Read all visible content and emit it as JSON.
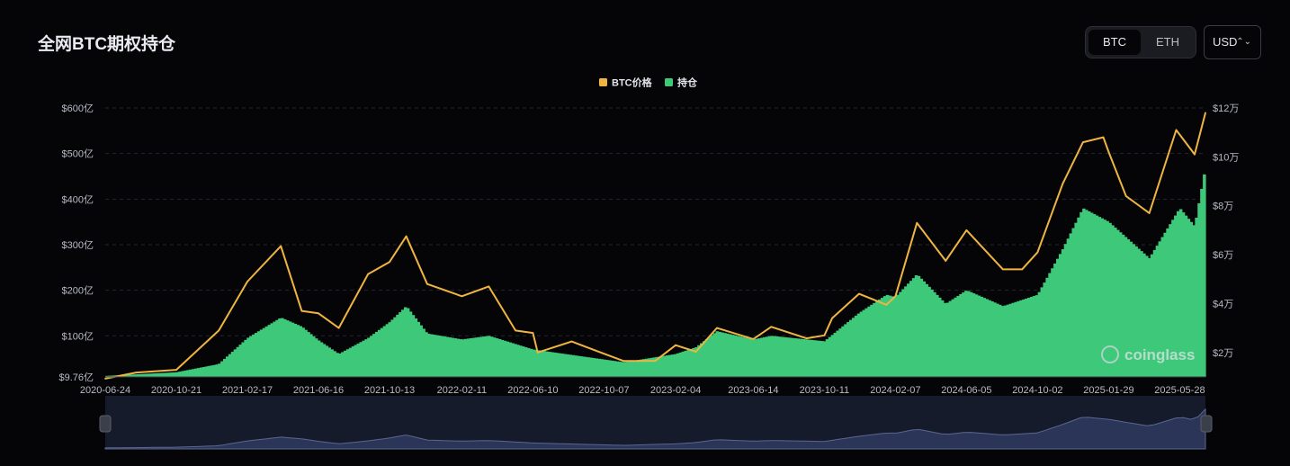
{
  "header": {
    "title": "全网BTC期权持仓",
    "asset_tabs": [
      "BTC",
      "ETH"
    ],
    "active_tab": "BTC",
    "currency": "USD"
  },
  "watermark": "coinglass",
  "colors": {
    "price_line": "#f0b541",
    "open_interest": "#3ec97a",
    "background": "#050508",
    "grid": "#23262e",
    "navigator": "#2b3558"
  },
  "chart_data": {
    "type": "area",
    "legend": [
      "BTC价格",
      "持仓"
    ],
    "legend_position": "top-center",
    "x": [
      "2020-06-24",
      "2020-10-21",
      "2021-02-17",
      "2021-06-16",
      "2021-10-13",
      "2022-02-11",
      "2022-06-10",
      "2022-10-07",
      "2023-02-04",
      "2023-06-14",
      "2023-10-11",
      "2024-02-07",
      "2024-06-05",
      "2024-10-02",
      "2025-01-29",
      "2025-05-28"
    ],
    "y_left_ticks": [
      "$9.76亿",
      "$100亿",
      "$200亿",
      "$300亿",
      "$400亿",
      "$500亿",
      "$600亿"
    ],
    "y_right_ticks": [
      "$2万",
      "$4万",
      "$6万",
      "$8万",
      "$10万",
      "$12万"
    ],
    "y_left_range": [
      9.76,
      600
    ],
    "y_right_range": [
      10000,
      120000
    ],
    "grid": true,
    "series": [
      {
        "name": "BTC价格",
        "axis": "right",
        "x": [
          "2020-06-24",
          "2020-08-15",
          "2020-10-21",
          "2020-12-31",
          "2021-02-17",
          "2021-04-14",
          "2021-05-19",
          "2021-06-16",
          "2021-07-20",
          "2021-09-07",
          "2021-10-13",
          "2021-11-10",
          "2021-12-15",
          "2022-02-11",
          "2022-03-28",
          "2022-05-12",
          "2022-06-10",
          "2022-06-18",
          "2022-08-14",
          "2022-10-07",
          "2022-11-09",
          "2023-01-01",
          "2023-02-04",
          "2023-03-10",
          "2023-04-14",
          "2023-06-14",
          "2023-07-14",
          "2023-09-11",
          "2023-10-11",
          "2023-10-24",
          "2023-12-08",
          "2024-01-23",
          "2024-02-07",
          "2024-03-14",
          "2024-05-01",
          "2024-06-05",
          "2024-08-05",
          "2024-09-06",
          "2024-10-02",
          "2024-11-13",
          "2024-12-17",
          "2025-01-20",
          "2025-01-29",
          "2025-02-27",
          "2025-04-07",
          "2025-05-22",
          "2025-06-22",
          "2025-07-10"
        ],
        "values": [
          9300,
          11800,
          12900,
          29000,
          49000,
          63500,
          37000,
          36000,
          30000,
          52000,
          57000,
          67500,
          48000,
          43000,
          47000,
          29000,
          28000,
          20000,
          24500,
          19500,
          16500,
          16600,
          23000,
          20300,
          30000,
          25500,
          30500,
          25800,
          27000,
          34000,
          44000,
          39500,
          43000,
          73000,
          57500,
          70000,
          54000,
          54000,
          61000,
          89000,
          106000,
          108000,
          102000,
          84000,
          77000,
          111000,
          101000,
          118000
        ]
      },
      {
        "name": "持仓",
        "axis": "left",
        "x": [
          "2020-06-24",
          "2020-10-21",
          "2020-12-31",
          "2021-02-17",
          "2021-04-14",
          "2021-05-19",
          "2021-06-16",
          "2021-07-20",
          "2021-09-07",
          "2021-10-13",
          "2021-11-10",
          "2021-12-15",
          "2022-02-11",
          "2022-03-28",
          "2022-06-10",
          "2022-10-07",
          "2022-11-09",
          "2023-02-04",
          "2023-03-10",
          "2023-04-14",
          "2023-06-14",
          "2023-07-14",
          "2023-10-11",
          "2023-12-08",
          "2024-01-23",
          "2024-02-07",
          "2024-03-14",
          "2024-05-01",
          "2024-06-05",
          "2024-08-05",
          "2024-10-02",
          "2024-11-13",
          "2024-12-17",
          "2025-01-29",
          "2025-04-07",
          "2025-05-28",
          "2025-06-22",
          "2025-07-10"
        ],
        "values": [
          12,
          20,
          38,
          95,
          140,
          120,
          90,
          60,
          95,
          130,
          165,
          105,
          92,
          100,
          70,
          48,
          42,
          60,
          75,
          110,
          92,
          100,
          88,
          150,
          190,
          185,
          235,
          170,
          200,
          165,
          190,
          290,
          380,
          350,
          270,
          380,
          340,
          470
        ]
      }
    ]
  }
}
